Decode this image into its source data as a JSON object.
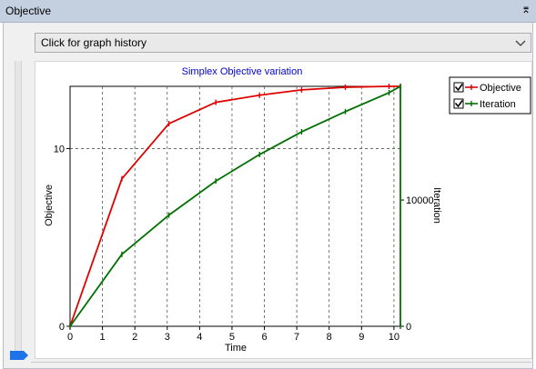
{
  "window": {
    "title": "Objective",
    "pin_glyph": "⌆"
  },
  "toolbar": {
    "history_dropdown": "Click for graph history"
  },
  "chart_data": {
    "type": "line",
    "title": "Simplex Objective variation",
    "xlabel": "Time",
    "ylabel": "Objective",
    "y2label": "Iteration",
    "xlim": [
      0,
      10.2
    ],
    "ylim": [
      0,
      13.5
    ],
    "y2lim": [
      0,
      19000
    ],
    "xticks": [
      "0",
      "1",
      "2",
      "3",
      "4",
      "5",
      "6",
      "7",
      "8",
      "9",
      "10"
    ],
    "yticks": [
      {
        "value": 0,
        "label": "0"
      },
      {
        "value": 10,
        "label": "10"
      }
    ],
    "y2ticks": [
      {
        "value": 0,
        "label": "0"
      },
      {
        "value": 10000,
        "label": "10000"
      }
    ],
    "grid": true,
    "legend": "top-right",
    "series": [
      {
        "name": "Objective",
        "axis": "left",
        "color": "#e00000",
        "x": [
          0,
          1.6,
          3.05,
          4.5,
          5.85,
          7.15,
          8.5,
          9.85,
          10.2
        ],
        "y": [
          0,
          8.3,
          11.4,
          12.6,
          13.0,
          13.3,
          13.45,
          13.5,
          13.5
        ]
      },
      {
        "name": "Iteration",
        "axis": "right",
        "color": "#007000",
        "x": [
          0,
          1.6,
          3.05,
          4.5,
          5.85,
          7.15,
          8.5,
          9.85,
          10.2,
          10.2
        ],
        "y": [
          0,
          5700,
          8800,
          11500,
          13600,
          15400,
          17000,
          18500,
          19000,
          0
        ]
      }
    ]
  }
}
